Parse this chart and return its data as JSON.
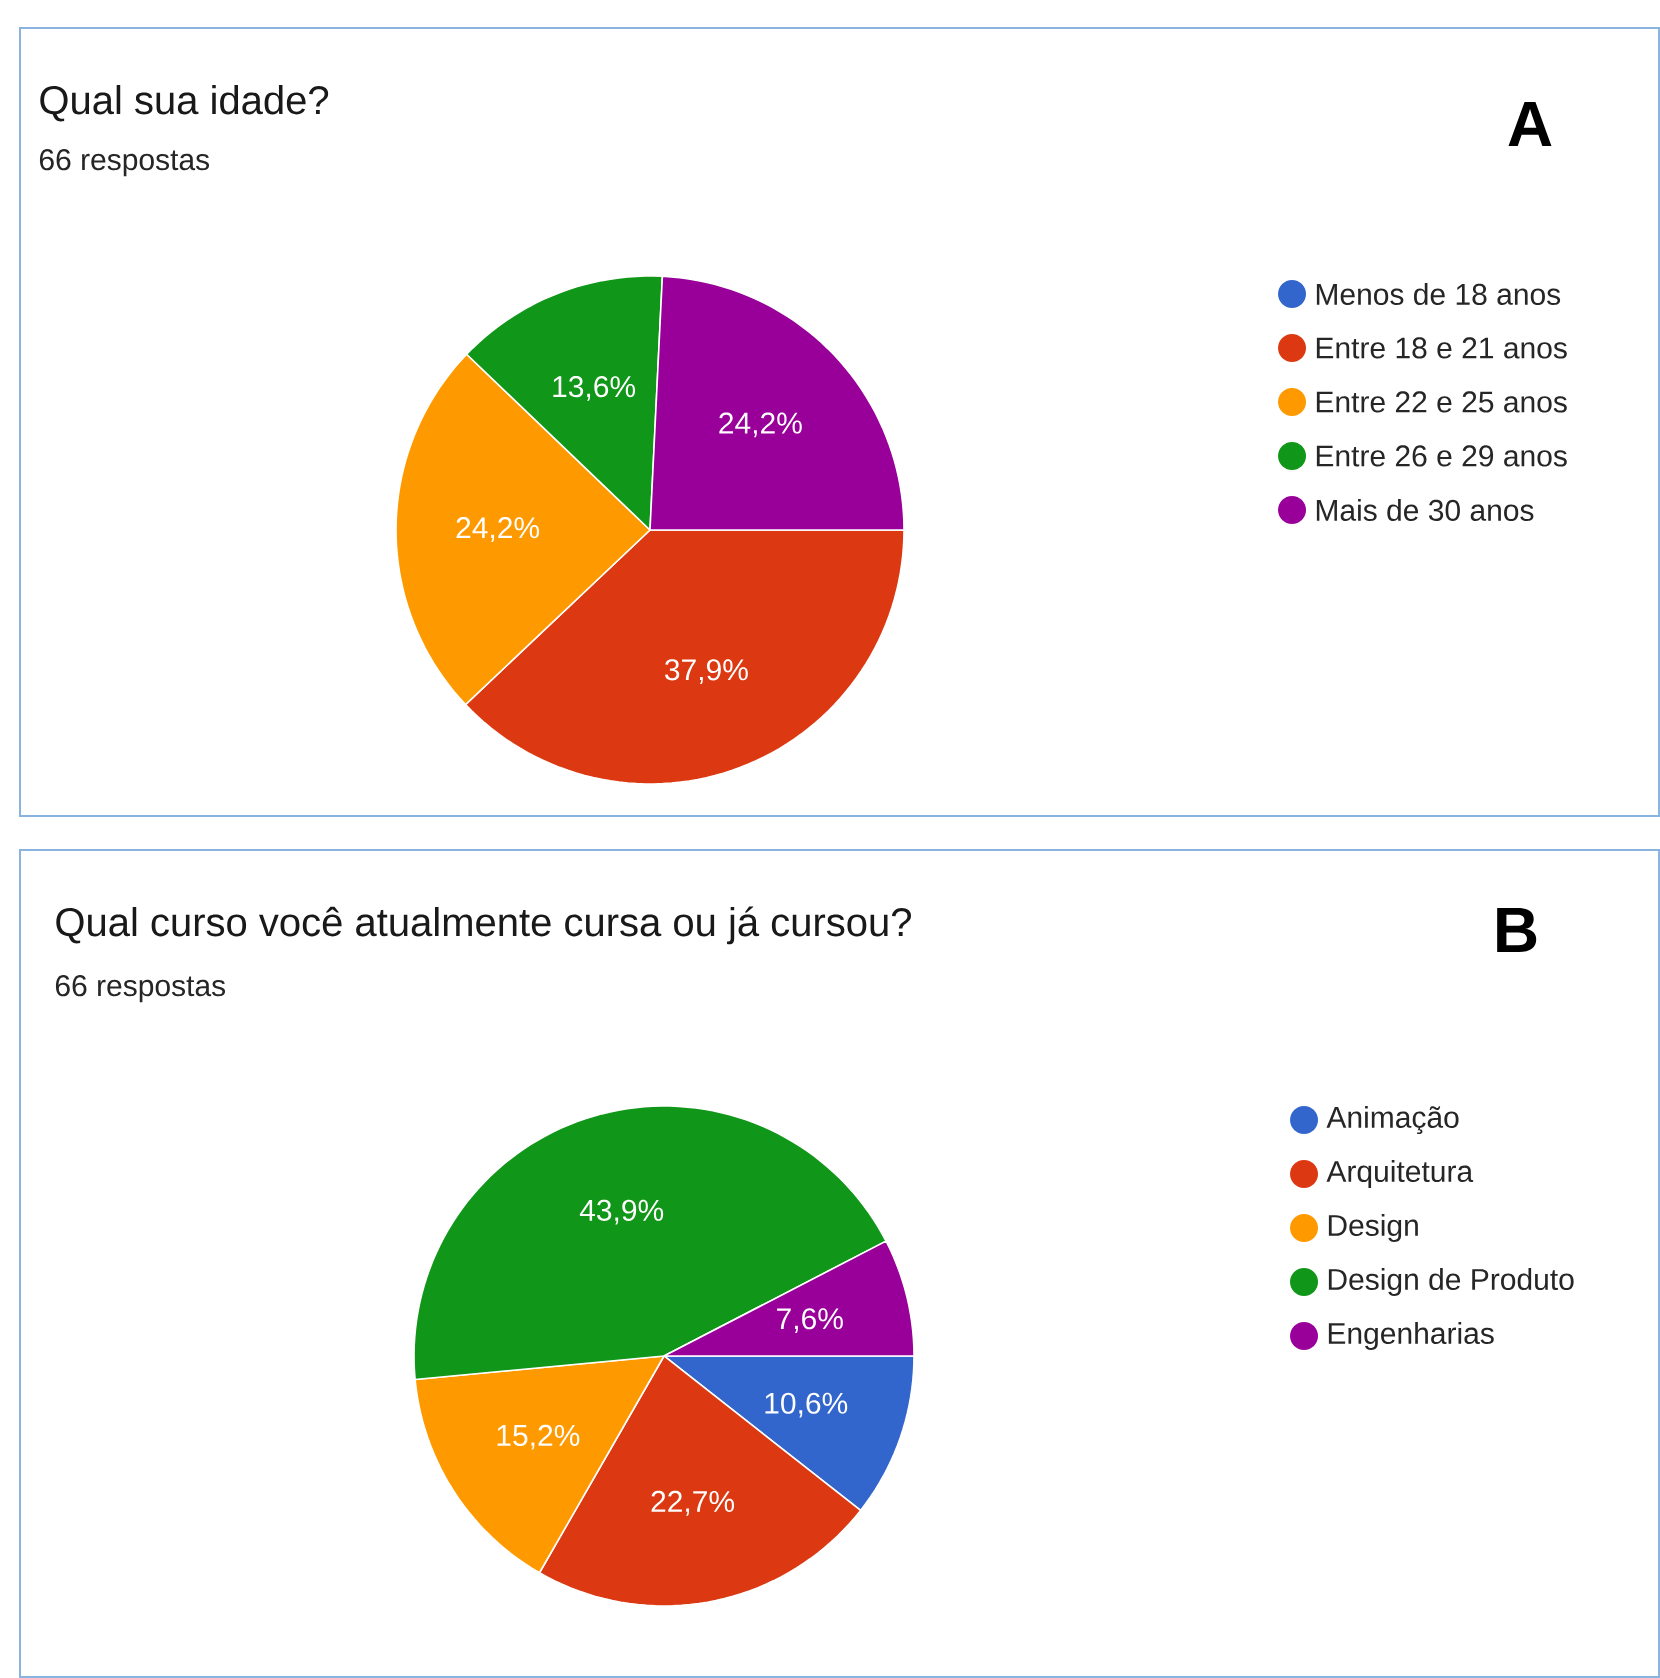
{
  "chart_data": [
    {
      "type": "pie",
      "title": "Qual sua idade?",
      "subtitle": "66 respostas",
      "annotations": [
        "A"
      ],
      "categories": [
        "Menos de 18 anos",
        "Entre 18 e 21 anos",
        "Entre 22 e 25 anos",
        "Entre 26 e 29 anos",
        "Mais de 30 anos"
      ],
      "values": [
        0,
        37.9,
        24.2,
        13.6,
        24.2
      ],
      "colors": [
        "#3366cc",
        "#dc3912",
        "#ff9900",
        "#109618",
        "#990099"
      ],
      "value_labels": [
        null,
        "37,9%",
        "24,2%",
        "13,6%",
        "24,2%"
      ],
      "legend": "right"
    },
    {
      "type": "pie",
      "title": "Qual curso você atualmente cursa ou já cursou?",
      "subtitle": "66 respostas",
      "annotations": [
        "B"
      ],
      "categories": [
        "Animação",
        "Arquitetura",
        "Design",
        "Design de Produto",
        "Engenharias"
      ],
      "values": [
        10.6,
        22.7,
        15.2,
        43.9,
        7.6
      ],
      "colors": [
        "#3366cc",
        "#dc3912",
        "#ff9900",
        "#109618",
        "#990099"
      ],
      "value_labels": [
        "10,6%",
        "22,7%",
        "15,2%",
        "43,9%",
        "7,6%"
      ],
      "legend": "right"
    }
  ]
}
